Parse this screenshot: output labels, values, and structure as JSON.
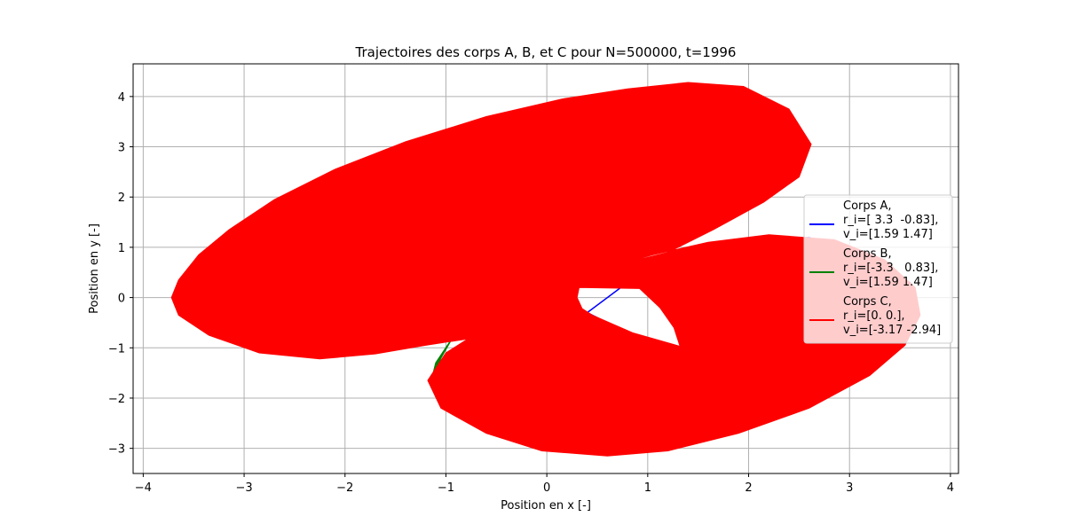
{
  "chart_data": {
    "type": "line",
    "title": "Trajectoires des corps A, B, et C pour N=500000, t=1996",
    "xlabel": "Position en x [-]",
    "ylabel": "Position en y [-]",
    "xlim": [
      -4.1,
      4.08
    ],
    "ylim": [
      -3.5,
      4.65
    ],
    "xticks": [
      -4,
      -3,
      -2,
      -1,
      0,
      1,
      2,
      3,
      4
    ],
    "yticks": [
      -3,
      -2,
      -1,
      0,
      1,
      2,
      3,
      4
    ],
    "xtick_labels": [
      "−4",
      "−3",
      "−2",
      "−1",
      "0",
      "1",
      "2",
      "3",
      "4"
    ],
    "ytick_labels": [
      "−3",
      "−2",
      "−1",
      "0",
      "1",
      "2",
      "3",
      "4"
    ],
    "grid": true,
    "legend_position": "right",
    "series": [
      {
        "name": "Corps A,",
        "legend_lines": [
          "Corps A,",
          "r_i=[ 3.3  -0.83],",
          "v_i=[1.59 1.47]"
        ],
        "color": "#0000ff",
        "points": [
          [
            3.3,
            -0.83
          ],
          [
            3.6,
            0.3
          ],
          [
            2.6,
            1.2
          ],
          [
            1.2,
            0.9
          ],
          [
            0.4,
            -0.3
          ],
          [
            1.2,
            -1.1
          ],
          [
            3.3,
            -0.83
          ]
        ]
      },
      {
        "name": "Corps B,",
        "legend_lines": [
          "Corps B,",
          "r_i=[-3.3   0.83],",
          "v_i=[1.59 1.47]"
        ],
        "color": "#008000",
        "points": [
          [
            -1.15,
            -1.7
          ],
          [
            -1.05,
            -1.2
          ],
          [
            -0.95,
            -0.85
          ],
          [
            -1.1,
            -1.3
          ],
          [
            -1.15,
            -1.7
          ]
        ]
      },
      {
        "name": "Corps C,",
        "legend_lines": [
          "Corps C,",
          "r_i=[0. 0.],",
          "v_i=[-3.17 -2.94]"
        ],
        "color": "#ff0000",
        "region": [
          [
            -3.72,
            0.0
          ],
          [
            -3.65,
            0.35
          ],
          [
            -3.45,
            0.85
          ],
          [
            -3.15,
            1.35
          ],
          [
            -2.7,
            1.95
          ],
          [
            -2.1,
            2.55
          ],
          [
            -1.4,
            3.1
          ],
          [
            -0.6,
            3.6
          ],
          [
            0.15,
            3.95
          ],
          [
            0.8,
            4.15
          ],
          [
            1.4,
            4.28
          ],
          [
            1.95,
            4.2
          ],
          [
            2.4,
            3.75
          ],
          [
            2.62,
            3.05
          ],
          [
            2.5,
            2.4
          ],
          [
            2.15,
            1.9
          ],
          [
            1.65,
            1.35
          ],
          [
            1.2,
            0.9
          ],
          [
            0.7,
            0.65
          ],
          [
            1.05,
            0.85
          ],
          [
            1.6,
            1.1
          ],
          [
            2.2,
            1.25
          ],
          [
            2.85,
            1.15
          ],
          [
            3.35,
            0.75
          ],
          [
            3.65,
            0.2
          ],
          [
            3.7,
            -0.35
          ],
          [
            3.55,
            -0.95
          ],
          [
            3.2,
            -1.55
          ],
          [
            2.6,
            -2.2
          ],
          [
            1.9,
            -2.7
          ],
          [
            1.2,
            -3.05
          ],
          [
            0.6,
            -3.15
          ],
          [
            -0.05,
            -3.05
          ],
          [
            -0.6,
            -2.7
          ],
          [
            -1.05,
            -2.2
          ],
          [
            -1.18,
            -1.65
          ],
          [
            -1.0,
            -1.1
          ],
          [
            -0.78,
            -0.82
          ],
          [
            -1.2,
            -0.95
          ],
          [
            -1.7,
            -1.12
          ],
          [
            -2.25,
            -1.22
          ],
          [
            -2.85,
            -1.1
          ],
          [
            -3.35,
            -0.75
          ],
          [
            -3.65,
            -0.35
          ],
          [
            -3.72,
            0.0
          ]
        ],
        "hole": [
          [
            0.32,
            0.2
          ],
          [
            0.92,
            0.18
          ],
          [
            1.12,
            -0.2
          ],
          [
            1.26,
            -0.6
          ],
          [
            1.32,
            -0.97
          ],
          [
            0.85,
            -0.7
          ],
          [
            0.45,
            -0.35
          ],
          [
            0.35,
            -0.22
          ],
          [
            0.3,
            0.0
          ],
          [
            0.32,
            0.2
          ]
        ]
      }
    ]
  }
}
